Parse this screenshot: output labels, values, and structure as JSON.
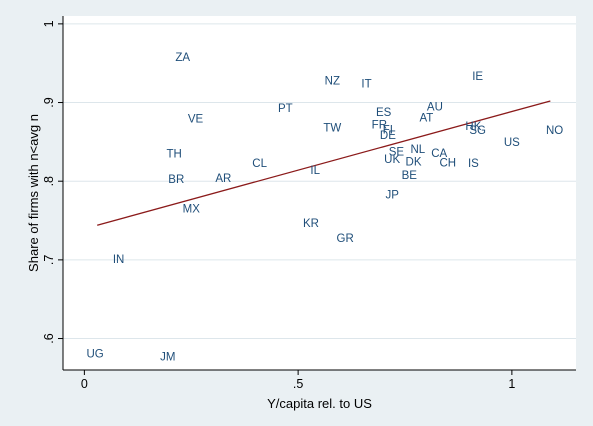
{
  "chart_data": {
    "type": "scatter",
    "title": "",
    "xlabel": "Y/capita rel. to US",
    "ylabel": "Share of firms with n<avg n",
    "xlim": [
      -0.05,
      1.15
    ],
    "ylim": [
      0.56,
      1.01
    ],
    "x_ticks": [
      0,
      0.5,
      1
    ],
    "x_tick_labels": [
      "0",
      ".5",
      "1"
    ],
    "y_ticks": [
      0.6,
      0.7,
      0.8,
      0.9,
      1.0
    ],
    "y_tick_labels": [
      ".6",
      ".7",
      ".8",
      ".9",
      "1"
    ],
    "grid": "horizontal",
    "marker": "country-code labels",
    "colors": {
      "labels": "#1f4e79",
      "fit_line": "#8b1a1a",
      "background": "#eaf0f3",
      "plot_area": "#ffffff",
      "grid": "#dde6eb"
    },
    "points": [
      {
        "label": "ZA",
        "x": 0.23,
        "y": 0.958
      },
      {
        "label": "NZ",
        "x": 0.58,
        "y": 0.928
      },
      {
        "label": "IT",
        "x": 0.66,
        "y": 0.924
      },
      {
        "label": "IE",
        "x": 0.92,
        "y": 0.934
      },
      {
        "label": "PT",
        "x": 0.47,
        "y": 0.893
      },
      {
        "label": "ES",
        "x": 0.7,
        "y": 0.888
      },
      {
        "label": "AU",
        "x": 0.82,
        "y": 0.895
      },
      {
        "label": "AT",
        "x": 0.8,
        "y": 0.881
      },
      {
        "label": "VE",
        "x": 0.26,
        "y": 0.88
      },
      {
        "label": "TW",
        "x": 0.58,
        "y": 0.868
      },
      {
        "label": "FR",
        "x": 0.69,
        "y": 0.872
      },
      {
        "label": "FI",
        "x": 0.71,
        "y": 0.866
      },
      {
        "label": "DE",
        "x": 0.71,
        "y": 0.859
      },
      {
        "label": "NL",
        "x": 0.78,
        "y": 0.841
      },
      {
        "label": "HK",
        "x": 0.91,
        "y": 0.87
      },
      {
        "label": "SG",
        "x": 0.92,
        "y": 0.865
      },
      {
        "label": "NO",
        "x": 1.1,
        "y": 0.865
      },
      {
        "label": "US",
        "x": 1.0,
        "y": 0.85
      },
      {
        "label": "TH",
        "x": 0.21,
        "y": 0.835
      },
      {
        "label": "SE",
        "x": 0.73,
        "y": 0.838
      },
      {
        "label": "CA",
        "x": 0.83,
        "y": 0.836
      },
      {
        "label": "UK",
        "x": 0.72,
        "y": 0.828
      },
      {
        "label": "DK",
        "x": 0.77,
        "y": 0.825
      },
      {
        "label": "CH",
        "x": 0.85,
        "y": 0.824
      },
      {
        "label": "IS",
        "x": 0.91,
        "y": 0.823
      },
      {
        "label": "CL",
        "x": 0.41,
        "y": 0.823
      },
      {
        "label": "IL",
        "x": 0.54,
        "y": 0.814
      },
      {
        "label": "BE",
        "x": 0.76,
        "y": 0.808
      },
      {
        "label": "BR",
        "x": 0.215,
        "y": 0.803
      },
      {
        "label": "AR",
        "x": 0.325,
        "y": 0.804
      },
      {
        "label": "JP",
        "x": 0.72,
        "y": 0.783
      },
      {
        "label": "MX",
        "x": 0.25,
        "y": 0.765
      },
      {
        "label": "KR",
        "x": 0.53,
        "y": 0.747
      },
      {
        "label": "GR",
        "x": 0.61,
        "y": 0.728
      },
      {
        "label": "IN",
        "x": 0.08,
        "y": 0.701
      },
      {
        "label": "UG",
        "x": 0.025,
        "y": 0.581
      },
      {
        "label": "JM",
        "x": 0.195,
        "y": 0.577
      }
    ],
    "fit_line": {
      "x": [
        0.03,
        1.09
      ],
      "y": [
        0.744,
        0.902
      ]
    }
  }
}
